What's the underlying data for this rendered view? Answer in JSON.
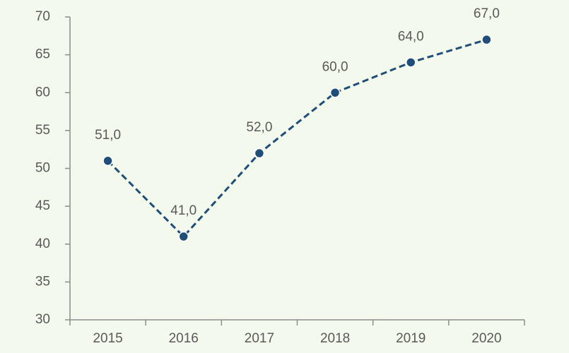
{
  "chart_data": {
    "type": "line",
    "categories": [
      "2015",
      "2016",
      "2017",
      "2018",
      "2019",
      "2020"
    ],
    "series": [
      {
        "values": [
          51,
          41,
          52,
          60,
          64,
          67
        ],
        "value_labels": [
          "51,0",
          "41,0",
          "52,0",
          "60,0",
          "64,0",
          "67,0"
        ],
        "color": "#1f4e79"
      }
    ],
    "ylim": [
      30,
      70
    ],
    "yticks": [
      30,
      35,
      40,
      45,
      50,
      55,
      60,
      65,
      70
    ],
    "grid": false
  }
}
